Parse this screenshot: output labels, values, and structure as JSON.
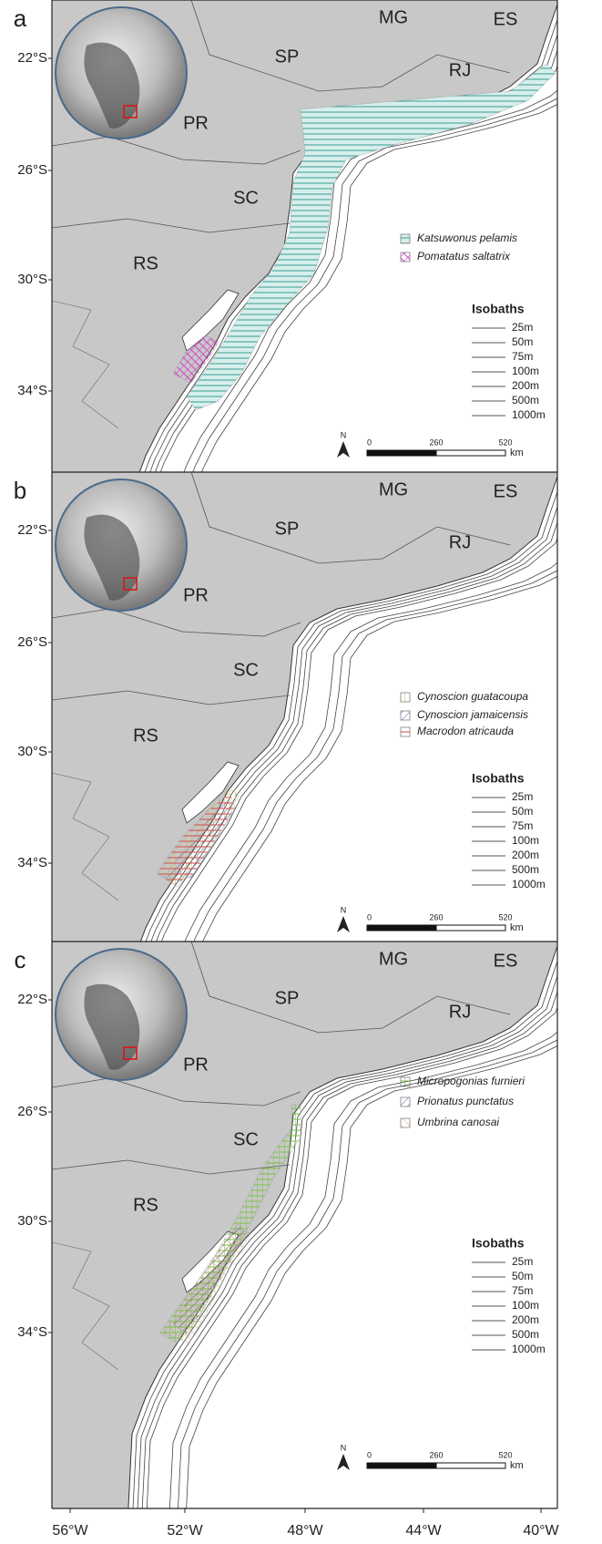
{
  "panels": [
    {
      "label": "a",
      "legend": [
        "Katsuwonus pelamis",
        "Pomatatus saltatrix"
      ]
    },
    {
      "label": "b",
      "legend": [
        "Cynoscion guatacoupa",
        "Cynoscion jamaicensis",
        "Macrodon atricauda"
      ]
    },
    {
      "label": "c",
      "legend": [
        "Micropogonias furnieri",
        "Prionatus punctatus",
        "Umbrina canosai"
      ]
    }
  ],
  "states": [
    "MG",
    "ES",
    "SP",
    "RJ",
    "PR",
    "SC",
    "RS"
  ],
  "latitudes": [
    "22°S",
    "26°S",
    "30°S",
    "34°S"
  ],
  "isobaths": {
    "title": "Isobaths",
    "depths": [
      "25m",
      "50m",
      "75m",
      "100m",
      "200m",
      "500m",
      "1000m"
    ]
  },
  "scale_bar": {
    "ticks": [
      "0",
      "260",
      "520"
    ],
    "unit": "km"
  },
  "north": "N",
  "longitudes": [
    "56°W",
    "52°W",
    "48°W",
    "44°W",
    "40°W"
  ]
}
